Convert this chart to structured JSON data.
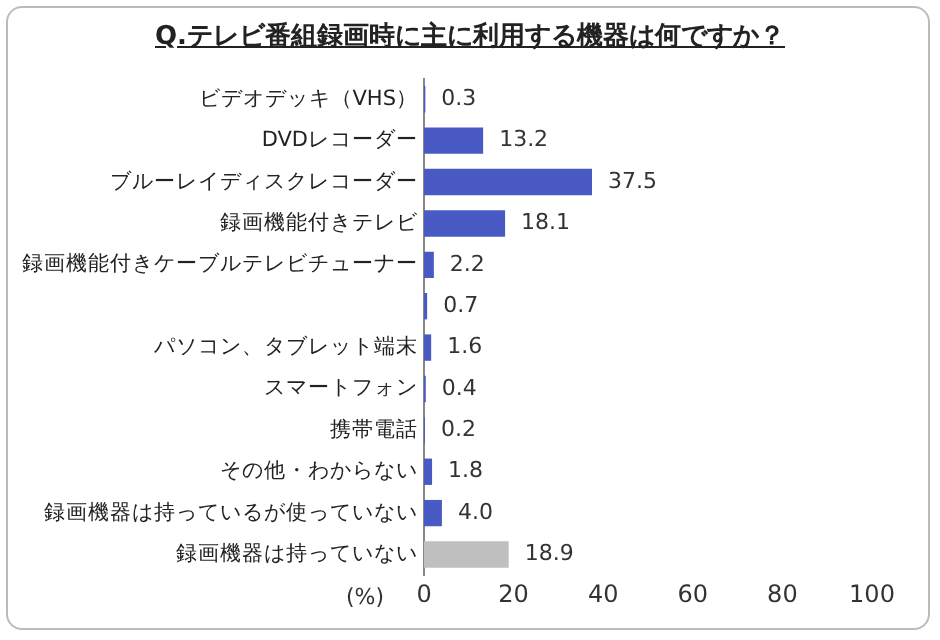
{
  "chart_data": {
    "type": "bar",
    "orientation": "horizontal",
    "title": "Q.テレビ番組録画時に主に利用する機器は何ですか？",
    "xlabel": "(%)",
    "categories": [
      "ビデオデッキ（VHS）",
      "DVDレコーダー",
      "ブルーレイディスクレコーダー",
      "録画機能付きテレビ",
      "録画機能付きケーブルテレビチューナー",
      null,
      "パソコン、タブレット端末",
      "スマートフォン",
      "携帯電話",
      "その他・わからない",
      "録画機器は持っているが使っていない",
      "録画機器は持っていない"
    ],
    "values": [
      0.3,
      13.2,
      37.5,
      18.1,
      2.2,
      0.7,
      1.6,
      0.4,
      0.2,
      1.8,
      4.0,
      18.9
    ],
    "value_labels": [
      "0.3",
      "13.2",
      "37.5",
      "18.1",
      "2.2",
      "0.7",
      "1.6",
      "0.4",
      "0.2",
      "1.8",
      "4.0",
      "18.9"
    ],
    "colors": [
      "#4a5ac4",
      "#4a5ac4",
      "#4a5ac4",
      "#4a5ac4",
      "#4a5ac4",
      "#4a5ac4",
      "#4a5ac4",
      "#4a5ac4",
      "#4a5ac4",
      "#4a5ac4",
      "#4a5ac4",
      "#bfbfbf"
    ],
    "xlim": [
      0,
      100
    ],
    "xticks": [
      0,
      20,
      40,
      60,
      80,
      100
    ],
    "grid": false,
    "legend": false
  }
}
